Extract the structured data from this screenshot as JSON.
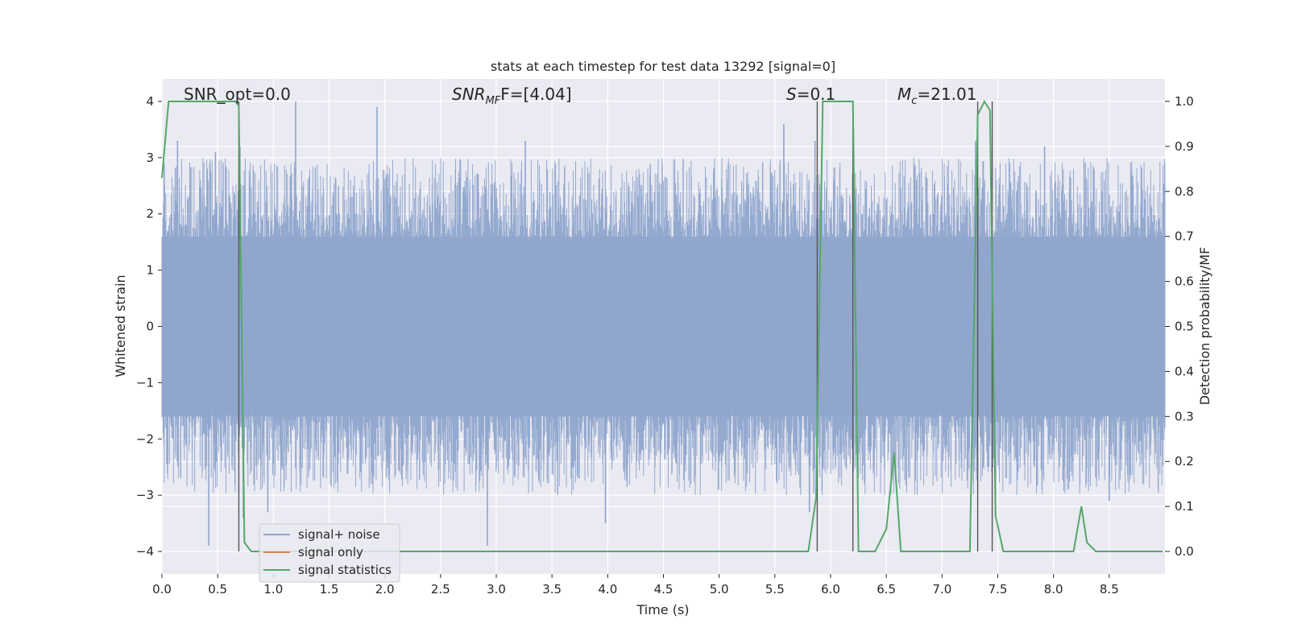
{
  "chart_data": {
    "type": "line",
    "title": "stats at each timestep for test data 13292 [signal=0]",
    "xlabel": "Time (s)",
    "ylabel_left": "Whitened strain",
    "ylabel_right": "Detection probability/MF",
    "xlim": [
      0,
      9
    ],
    "ylim_left": [
      -4.4,
      4.4
    ],
    "ylim_right": [
      -0.05,
      1.05
    ],
    "x_ticks": [
      "0.0",
      "0.5",
      "1.0",
      "1.5",
      "2.0",
      "2.5",
      "3.0",
      "3.5",
      "4.0",
      "4.5",
      "5.0",
      "5.5",
      "6.0",
      "6.5",
      "7.0",
      "7.5",
      "8.0",
      "8.5"
    ],
    "y_left_ticks": [
      "−4",
      "−3",
      "−2",
      "−1",
      "0",
      "1",
      "2",
      "3",
      "4"
    ],
    "y_right_ticks": [
      "0.0",
      "0.1",
      "0.2",
      "0.3",
      "0.4",
      "0.5",
      "0.6",
      "0.7",
      "0.8",
      "0.9",
      "1.0"
    ],
    "annotations": [
      {
        "label": "SNR_opt=0.0"
      },
      {
        "label_italic": "SNR",
        "label_sub": "MF",
        "label_tail": "F=[4.04]"
      },
      {
        "label_italic": "S",
        "label_tail": "=0.1"
      },
      {
        "label_italic": "M",
        "label_sub": "c",
        "label_tail": "=21.01"
      }
    ],
    "legend": {
      "placement": "lower-left",
      "entries": [
        {
          "label": "signal+ noise",
          "color": "#8fa5cc"
        },
        {
          "label": "signal only",
          "color": "#dd8452"
        },
        {
          "label": "signal statistics",
          "color": "#55a868"
        }
      ]
    },
    "noise_band": {
      "typical_low": -1.6,
      "typical_high": 1.6,
      "peaks_high": [
        {
          "x": 0.02,
          "y": 2.9
        },
        {
          "x": 0.14,
          "y": 3.3
        },
        {
          "x": 0.43,
          "y": 2.9
        },
        {
          "x": 0.48,
          "y": 3.1
        },
        {
          "x": 0.7,
          "y": 3.2
        },
        {
          "x": 1.2,
          "y": 4.0
        },
        {
          "x": 1.93,
          "y": 3.9
        },
        {
          "x": 3.26,
          "y": 3.3
        },
        {
          "x": 5.58,
          "y": 3.6
        },
        {
          "x": 5.86,
          "y": 3.3
        },
        {
          "x": 7.3,
          "y": 3.3
        },
        {
          "x": 7.92,
          "y": 3.2
        }
      ],
      "peaks_low": [
        {
          "x": 0.42,
          "y": -3.9
        },
        {
          "x": 0.73,
          "y": -3.4
        },
        {
          "x": 0.95,
          "y": -3.3
        },
        {
          "x": 2.92,
          "y": -3.9
        },
        {
          "x": 3.98,
          "y": -3.5
        },
        {
          "x": 5.81,
          "y": -3.3
        },
        {
          "x": 7.48,
          "y": -3.3
        },
        {
          "x": 8.5,
          "y": -3.1
        }
      ]
    },
    "detection_probability": {
      "x": [
        0.0,
        0.06,
        0.1,
        0.66,
        0.69,
        0.74,
        0.8,
        5.8,
        5.87,
        5.93,
        6.2,
        6.25,
        6.4,
        6.5,
        6.57,
        6.63,
        6.7,
        7.25,
        7.32,
        7.38,
        7.43,
        7.48,
        7.55,
        8.18,
        8.25,
        8.3,
        8.38,
        8.98
      ],
      "y": [
        0.83,
        1.0,
        1.0,
        1.0,
        0.99,
        0.02,
        0.0,
        0.0,
        0.12,
        1.0,
        1.0,
        0.0,
        0.0,
        0.05,
        0.22,
        0.0,
        0.0,
        0.0,
        0.97,
        1.0,
        0.98,
        0.08,
        0.0,
        0.0,
        0.1,
        0.02,
        0.0,
        0.0
      ]
    },
    "vertical_markers_x": [
      0.69,
      5.88,
      6.2,
      7.32,
      7.45
    ],
    "grid": true
  }
}
